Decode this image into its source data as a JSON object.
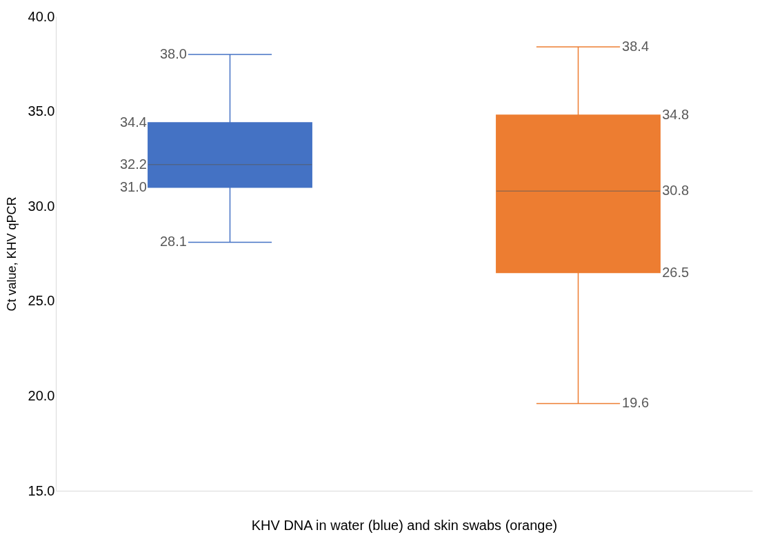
{
  "chart_data": {
    "type": "box",
    "xlabel": "KHV DNA in water (blue) and skin swabs (orange)",
    "ylabel": "Ct value, KHV qPCR",
    "categories": [
      null,
      null
    ],
    "boxes": [
      {
        "low": 28.1,
        "q1": 31.0,
        "median": 32.2,
        "q3": 34.4,
        "high": 38.0
      },
      {
        "low": 19.6,
        "q1": 26.5,
        "median": 30.8,
        "q3": 34.8,
        "high": 38.4
      }
    ],
    "colors": [
      "#4472c4",
      "#ed7d31"
    ],
    "ylim": [
      15,
      40
    ],
    "yticks": [
      {
        "value": 15,
        "label": "15.0"
      },
      {
        "value": 20,
        "label": "20.0"
      },
      {
        "value": 25,
        "label": "25.0"
      },
      {
        "value": 30,
        "label": "30.0"
      },
      {
        "value": 35,
        "label": "35.0"
      },
      {
        "value": 40,
        "label": "40.0"
      }
    ],
    "annotations": [
      "28.1",
      "31.0",
      "32.2",
      "34.4",
      "38.0",
      "19.6",
      "26.5",
      "30.8",
      "34.8",
      "38.4"
    ],
    "grid": false,
    "tick_labels": "y"
  }
}
